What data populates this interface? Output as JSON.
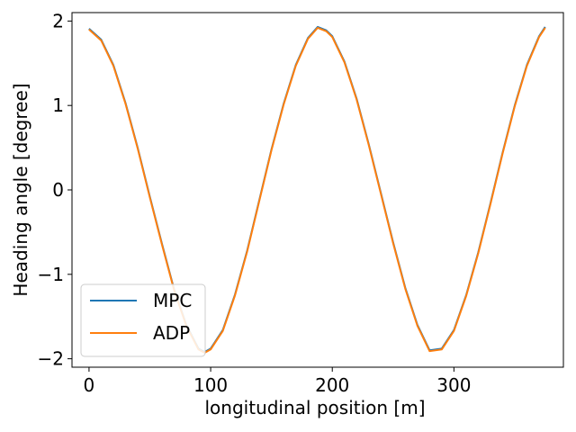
{
  "chart_data": {
    "type": "line",
    "title": "",
    "xlabel": "longitudinal position [m]",
    "ylabel": "Heading angle [degree]",
    "xlim": [
      -14,
      390
    ],
    "ylim": [
      -2.1,
      2.1
    ],
    "xticks": [
      0,
      100,
      200,
      300
    ],
    "xtick_labels": [
      "0",
      "100",
      "200",
      "300"
    ],
    "yticks": [
      -2,
      -1,
      0,
      1,
      2
    ],
    "ytick_labels": [
      "−2",
      "−1",
      "0",
      "1",
      "2"
    ],
    "grid": false,
    "legend": "lower-left",
    "series": [
      {
        "name": "MPC",
        "color": "#1f77b4",
        "x": [
          0,
          10,
          20,
          30,
          40,
          50,
          60,
          70,
          80,
          90,
          95,
          100,
          110,
          120,
          130,
          140,
          150,
          160,
          170,
          180,
          188,
          195,
          200,
          210,
          220,
          230,
          240,
          250,
          260,
          270,
          280,
          290,
          300,
          310,
          320,
          330,
          340,
          350,
          360,
          370,
          375
        ],
        "y": [
          1.91,
          1.78,
          1.48,
          1.03,
          0.5,
          -0.08,
          -0.64,
          -1.18,
          -1.6,
          -1.88,
          -1.92,
          -1.88,
          -1.66,
          -1.24,
          -0.72,
          -0.12,
          0.48,
          1.02,
          1.48,
          1.8,
          1.93,
          1.89,
          1.82,
          1.52,
          1.08,
          0.54,
          -0.04,
          -0.62,
          -1.16,
          -1.6,
          -1.9,
          -1.88,
          -1.66,
          -1.25,
          -0.74,
          -0.16,
          0.44,
          1.0,
          1.48,
          1.82,
          1.93
        ]
      },
      {
        "name": "ADP",
        "color": "#ff7f0e",
        "x": [
          0,
          10,
          20,
          30,
          40,
          50,
          60,
          70,
          80,
          90,
          95,
          100,
          110,
          120,
          130,
          140,
          150,
          160,
          170,
          180,
          188,
          195,
          200,
          210,
          220,
          230,
          240,
          250,
          260,
          270,
          280,
          290,
          300,
          310,
          320,
          330,
          340,
          350,
          360,
          370,
          375
        ],
        "y": [
          1.9,
          1.77,
          1.47,
          1.02,
          0.49,
          -0.09,
          -0.65,
          -1.19,
          -1.61,
          -1.89,
          -1.93,
          -1.89,
          -1.67,
          -1.25,
          -0.73,
          -0.13,
          0.47,
          1.01,
          1.47,
          1.79,
          1.92,
          1.88,
          1.81,
          1.51,
          1.07,
          0.53,
          -0.05,
          -0.63,
          -1.17,
          -1.61,
          -1.91,
          -1.89,
          -1.67,
          -1.26,
          -0.75,
          -0.17,
          0.43,
          0.99,
          1.47,
          1.81,
          1.92
        ]
      }
    ]
  }
}
